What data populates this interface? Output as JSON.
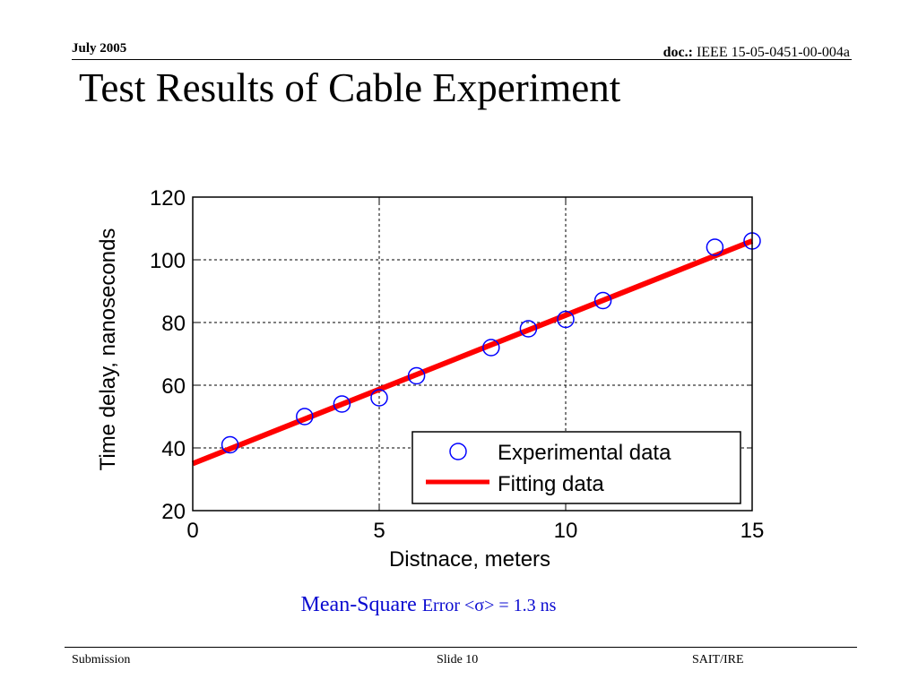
{
  "header": {
    "date": "July 2005",
    "doc_label": "doc.:",
    "doc_id": "IEEE 15-05-0451-00-004a"
  },
  "title": "Test Results of Cable Experiment",
  "mse": {
    "prefix": "Mean-Square",
    "rest": "Error <σ> = 1.3 ns"
  },
  "footer": {
    "left": "Submission",
    "center": "Slide 10",
    "right": "SAIT/IRE"
  },
  "chart_data": {
    "type": "scatter",
    "xlabel": "Distnace, meters",
    "ylabel": "Time delay, nanoseconds",
    "xlim": [
      0,
      15
    ],
    "ylim": [
      20,
      120
    ],
    "xticks": [
      0,
      5,
      10,
      15
    ],
    "yticks": [
      20,
      40,
      60,
      80,
      100,
      120
    ],
    "grid": true,
    "legend_position": "bottom-right",
    "colors": {
      "experimental": "#0000ff",
      "fitting": "#ff0000"
    },
    "series": [
      {
        "name": "Experimental data",
        "marker": "circle",
        "x": [
          1,
          3,
          4,
          5,
          6,
          8,
          9,
          10,
          11,
          14,
          15
        ],
        "y": [
          41,
          50,
          54,
          56,
          63,
          72,
          78,
          81,
          87,
          104,
          106
        ]
      },
      {
        "name": "Fitting data",
        "type": "line",
        "x": [
          0,
          15
        ],
        "y": [
          35,
          106
        ]
      }
    ]
  }
}
